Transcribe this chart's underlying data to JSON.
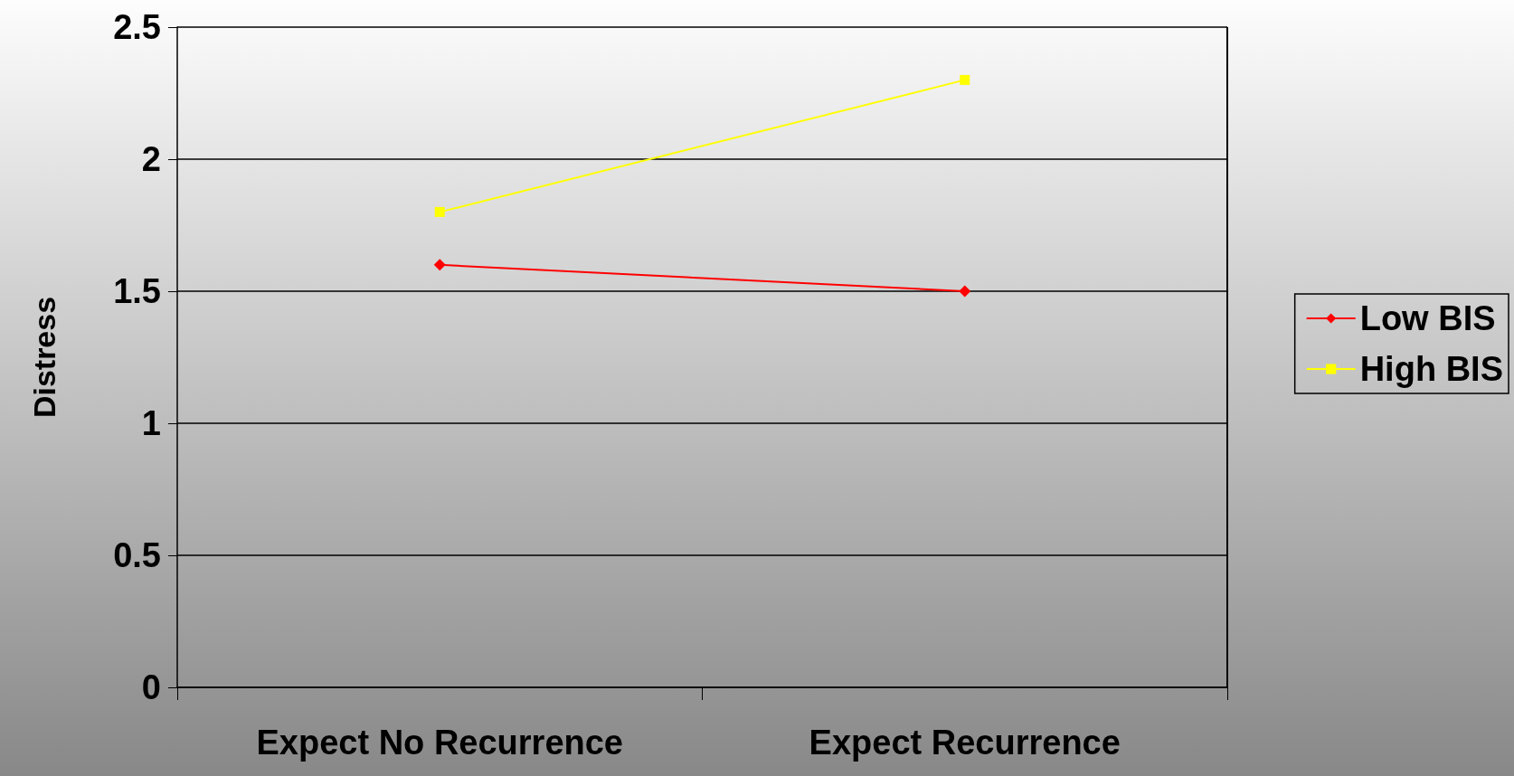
{
  "chart_data": {
    "type": "line",
    "ylabel": "Distress",
    "categories": [
      "Expect No Recurrence",
      "Expect Recurrence"
    ],
    "series": [
      {
        "name": "Low BIS",
        "color": "#ff0000",
        "marker": "diamond",
        "values": [
          1.6,
          1.5
        ]
      },
      {
        "name": "High BIS",
        "color": "#ffff00",
        "marker": "square",
        "values": [
          1.8,
          2.3
        ]
      }
    ],
    "ylim": [
      0,
      2.5
    ],
    "yticks": [
      0,
      0.5,
      1,
      1.5,
      2,
      2.5
    ],
    "grid": "y",
    "legend": "right"
  }
}
